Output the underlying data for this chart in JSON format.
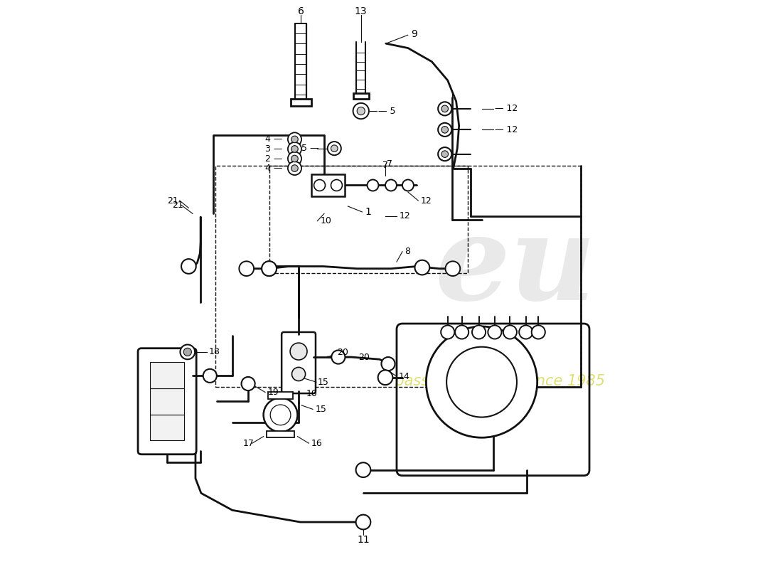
{
  "fig_width": 11.0,
  "fig_height": 8.0,
  "bg_color": "#ffffff",
  "lc": "#111111",
  "lw": 1.5,
  "lw_thick": 2.0
}
